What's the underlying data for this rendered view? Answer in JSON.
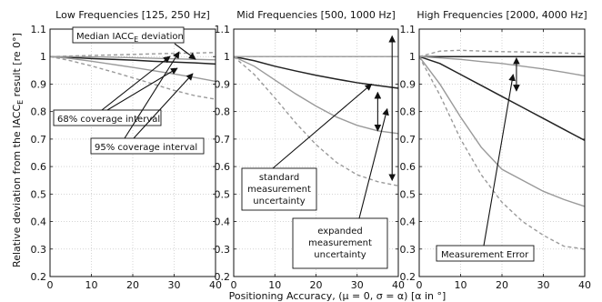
{
  "figure": {
    "ylabel": "Relative deviation from the IACC",
    "ylabel_sub": "E",
    "ylabel_tail": " result  [re 0°]",
    "xlabel": "Positioning Accuracy,",
    "xlabel_tail": "(μ = 0, σ = α) [α in °]",
    "yticks": [
      "0.2",
      "0.3",
      "0.4",
      "0.5",
      "0.6",
      "0.7",
      "0.8",
      "0.9",
      "1",
      "1.1"
    ],
    "xticks": [
      "0",
      "10",
      "20",
      "30",
      "40"
    ]
  },
  "chart_data": [
    {
      "type": "line",
      "title": "Low Frequencies [125, 250 Hz]",
      "xlim": [
        0,
        40
      ],
      "ylim": [
        0.2,
        1.1
      ],
      "grid": true,
      "x": [
        0,
        5,
        10,
        15,
        20,
        25,
        30,
        35,
        40
      ],
      "series": [
        {
          "style": "median",
          "color": "#222222",
          "values": [
            1.0,
            0.997,
            0.993,
            0.99,
            0.987,
            0.983,
            0.98,
            0.977,
            0.973
          ]
        },
        {
          "style": "p68-upper",
          "color": "#9a9a9a",
          "values": [
            1.0,
            1.0,
            0.999,
            0.998,
            0.996,
            0.994,
            0.992,
            0.99,
            0.988
          ]
        },
        {
          "style": "p68-lower",
          "color": "#9a9a9a",
          "values": [
            1.0,
            0.993,
            0.983,
            0.972,
            0.961,
            0.949,
            0.937,
            0.924,
            0.91
          ]
        },
        {
          "style": "p95-upper",
          "color": "#9a9a9a",
          "dashed": true,
          "values": [
            1.0,
            1.002,
            1.004,
            1.006,
            1.008,
            1.01,
            1.012,
            1.013,
            1.015
          ]
        },
        {
          "style": "p95-lower",
          "color": "#9a9a9a",
          "dashed": true,
          "values": [
            1.0,
            0.985,
            0.966,
            0.945,
            0.923,
            0.9,
            0.877,
            0.858,
            0.845
          ]
        }
      ],
      "annotations": [
        {
          "label": "Median IACC",
          "sub": "E",
          "tail": " deviation"
        },
        {
          "label": "68% coverage interval"
        },
        {
          "label": "95% coverage interval"
        }
      ]
    },
    {
      "type": "line",
      "title": "Mid Frequencies [500, 1000 Hz]",
      "xlim": [
        0,
        40
      ],
      "ylim": [
        0.2,
        1.1
      ],
      "grid": true,
      "x": [
        0,
        5,
        10,
        15,
        20,
        25,
        30,
        35,
        40
      ],
      "series": [
        {
          "style": "median",
          "color": "#222222",
          "values": [
            1.0,
            0.985,
            0.965,
            0.948,
            0.932,
            0.918,
            0.905,
            0.895,
            0.885
          ]
        },
        {
          "style": "p68-upper",
          "color": "#9a9a9a",
          "values": [
            1.0,
            1.0,
            1.0,
            1.0,
            1.0,
            1.0,
            1.0,
            1.0,
            1.0
          ]
        },
        {
          "style": "p68-lower",
          "color": "#9a9a9a",
          "values": [
            1.0,
            0.965,
            0.915,
            0.865,
            0.82,
            0.78,
            0.75,
            0.73,
            0.72
          ]
        },
        {
          "style": "p95-upper",
          "color": "#9a9a9a",
          "dashed": true,
          "values": [
            1.0,
            1.0,
            1.0,
            1.0,
            1.0,
            1.0,
            1.0,
            1.0,
            1.0
          ]
        },
        {
          "style": "p95-lower",
          "color": "#9a9a9a",
          "dashed": true,
          "values": [
            1.0,
            0.935,
            0.85,
            0.76,
            0.68,
            0.615,
            0.57,
            0.545,
            0.53
          ]
        }
      ],
      "annotations": [
        {
          "label": "standard measurement uncertainty",
          "lines": [
            "standard",
            "measurement",
            "uncertainty"
          ]
        },
        {
          "label": "expanded measurement uncertainty",
          "lines": [
            "expanded",
            "measurement",
            "uncertainty"
          ]
        }
      ]
    },
    {
      "type": "line",
      "title": "High Frequencies [2000, 4000 Hz]",
      "xlim": [
        0,
        40
      ],
      "ylim": [
        0.2,
        1.1
      ],
      "grid": true,
      "x": [
        0,
        5,
        10,
        15,
        20,
        25,
        30,
        35,
        40
      ],
      "series": [
        {
          "style": "median",
          "color": "#222222",
          "values": [
            1.0,
            0.975,
            0.935,
            0.895,
            0.855,
            0.815,
            0.775,
            0.735,
            0.695
          ]
        },
        {
          "style": "ref",
          "color": "#222222",
          "values": [
            1.0,
            1.0,
            1.0,
            1.0,
            1.0,
            1.0,
            1.0,
            1.0,
            1.0
          ]
        },
        {
          "style": "p68-upper",
          "color": "#9a9a9a",
          "values": [
            1.0,
            0.995,
            0.99,
            0.982,
            0.975,
            0.965,
            0.955,
            0.943,
            0.93
          ]
        },
        {
          "style": "p68-lower",
          "color": "#9a9a9a",
          "values": [
            1.0,
            0.9,
            0.78,
            0.67,
            0.59,
            0.55,
            0.51,
            0.48,
            0.455
          ]
        },
        {
          "style": "p95-upper",
          "color": "#9a9a9a",
          "dashed": true,
          "values": [
            1.0,
            1.02,
            1.023,
            1.02,
            1.018,
            1.017,
            1.015,
            1.013,
            1.01
          ]
        },
        {
          "style": "p95-lower",
          "color": "#9a9a9a",
          "dashed": true,
          "values": [
            1.0,
            0.86,
            0.7,
            0.57,
            0.47,
            0.4,
            0.35,
            0.31,
            0.3
          ]
        }
      ],
      "annotations": [
        {
          "label": "Measurement Error"
        }
      ]
    }
  ]
}
